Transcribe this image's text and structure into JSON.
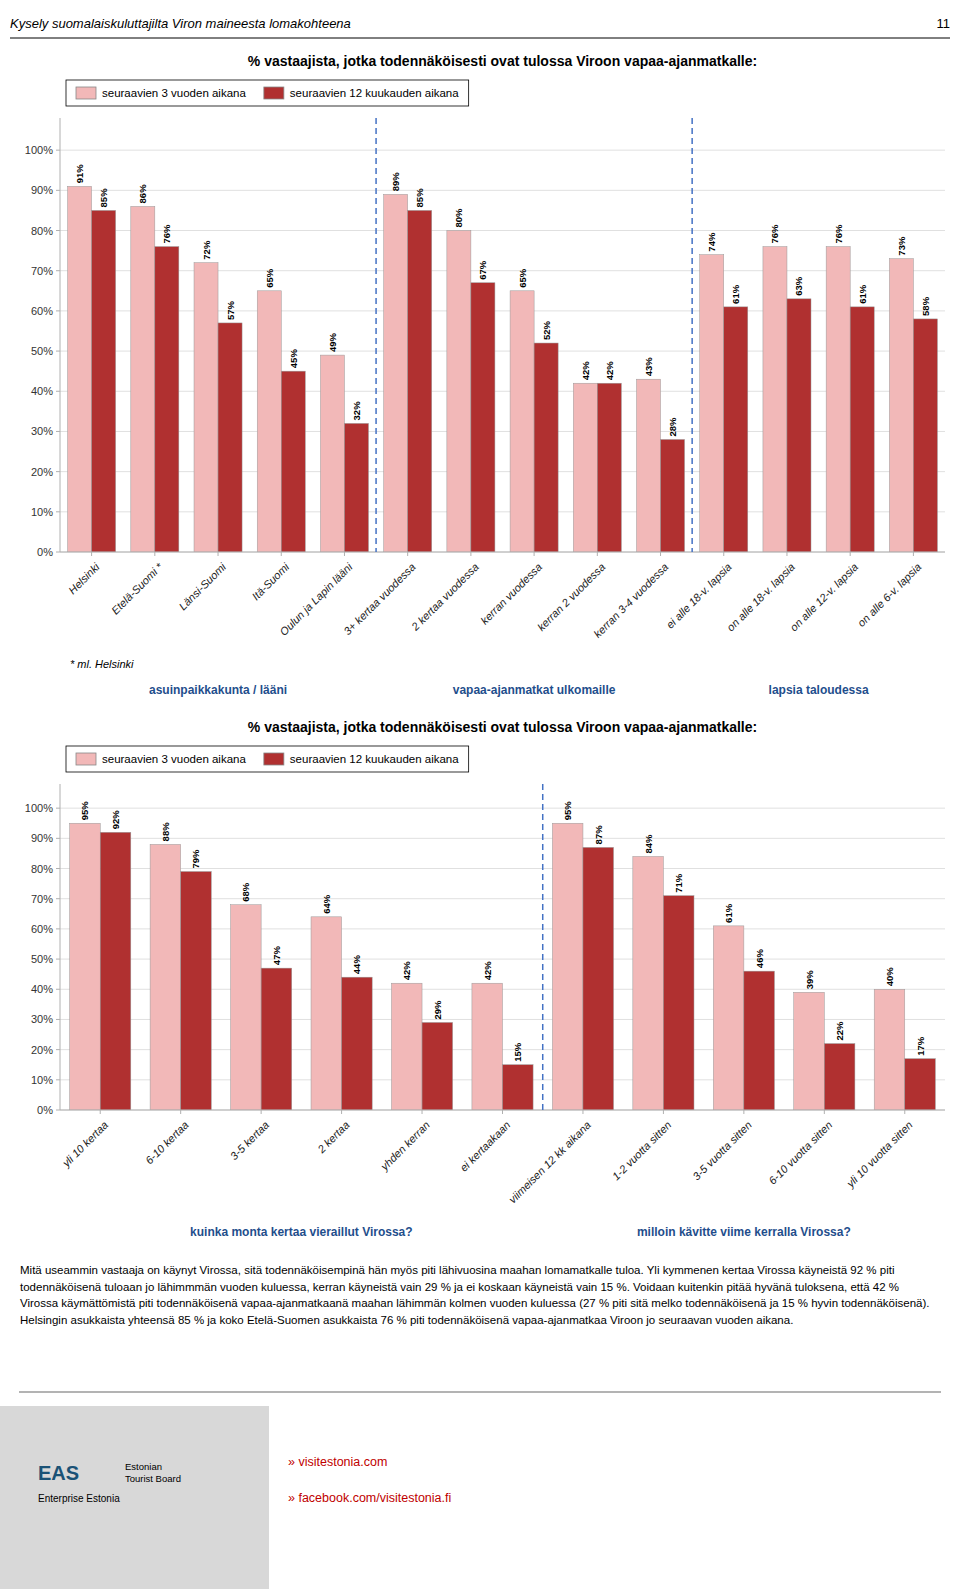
{
  "page": {
    "title": "Kysely suomalaiskuluttajilta Viron maineesta lomakohteena",
    "number": "11",
    "text": "Mitä useammin vastaaja on käynyt Virossa, sitä todennäköisempinä hän myös piti lähivuosina maahan lomamatkalle tuloa. Yli kymmenen kertaa Virossa käyneistä 92 % piti todennäköisenä tuloaan jo lähimmmän vuoden kuluessa, kerran käyneistä vain 29 % ja ei koskaan käyneistä vain 15 %. Voidaan kuitenkin pitää hyvänä tuloksena, että 42 % Virossa käymättömistä piti todennäköisenä vapaa-ajanmatkaanä maahan lähimmän kolmen vuoden kuluessa (27 % piti sitä melko todennäköisenä ja 15 % hyvin todennäköisenä). Helsingin asukkaista yhteensä 85 % ja koko Etelä-Suomen asukkaista 76 % piti todennäköisenä vapaa-ajanmatkaa Viroon jo seuraavan vuoden aikana.",
    "footer": {
      "logo": "EAS",
      "logo_caption": "Enterprise Estonia",
      "board": "Estonian\nTourist Board",
      "links": [
        "» visitestonia.com",
        "» facebook.com/visitestonia.fi"
      ]
    }
  },
  "chart_data": [
    {
      "type": "bar",
      "title": "% vastaajista, jotka todennäköisesti ovat tulossa Viroon vapaa-ajanmatkalle:",
      "categories": [
        "Helsinki",
        "Etelä-Suomi *",
        "Länsi-Suomi",
        "Itä-Suomi",
        "Oulun ja Lapin lääni",
        "3+ kertaa vuodessa",
        "2 kertaa vuodessa",
        "kerran vuodessa",
        "kerran 2 vuodessa",
        "kerran 3-4 vuodessa",
        "ei alle 18-v. lapsia",
        "on alle 18-v. lapsia",
        "on alle 12-v. lapsia",
        "on alle 6-v. lapsia"
      ],
      "series": [
        {
          "name": "seuraavien 3 vuoden aikana",
          "color": "#f2b8b8",
          "values": [
            91,
            86,
            72,
            65,
            49,
            89,
            80,
            65,
            42,
            43,
            74,
            76,
            76,
            73
          ],
          "value_labels": [
            "91%",
            "86%",
            "72%",
            "65%",
            "49%",
            "89%",
            "80%",
            "65%",
            "42%",
            "43%",
            "74%",
            "76%",
            "76%",
            "73%"
          ]
        },
        {
          "name": "seuraavien 12 kuukauden aikana",
          "color": "#b03030",
          "values": [
            85,
            76,
            57,
            45,
            32,
            85,
            67,
            52,
            42,
            28,
            61,
            63,
            61,
            58
          ],
          "value_labels": [
            "85%",
            "76%",
            "57%",
            "45%",
            "32%",
            "85%",
            "67%",
            "52%",
            "42%",
            "28%",
            "61%",
            "63%",
            "61%",
            "58%"
          ]
        }
      ],
      "ylim": [
        0,
        108
      ],
      "yticks": [
        {
          "value": 0,
          "label": "0%"
        },
        {
          "value": 10,
          "label": "10%"
        },
        {
          "value": 20,
          "label": "20%"
        },
        {
          "value": 30,
          "label": "30%"
        },
        {
          "value": 40,
          "label": "40%"
        },
        {
          "value": 50,
          "label": "50%"
        },
        {
          "value": 60,
          "label": "60%"
        },
        {
          "value": 70,
          "label": "70%"
        },
        {
          "value": 80,
          "label": "80%"
        },
        {
          "value": 90,
          "label": "90%"
        },
        {
          "value": 100,
          "label": "100%"
        }
      ],
      "grid": true,
      "legend": "top",
      "data_labels": true,
      "dividers": [
        5,
        10
      ],
      "group_labels": [
        "asuinpaikkakunta / lääni",
        "vapaa-ajanmatkat ulkomaille",
        "lapsia taloudessa"
      ],
      "footnote": "* ml. Helsinki"
    },
    {
      "type": "bar",
      "title": "% vastaajista, jotka todennäköisesti ovat tulossa Viroon vapaa-ajanmatkalle:",
      "categories": [
        "yli 10 kertaa",
        "6-10 kertaa",
        "3-5 kertaa",
        "2 kertaa",
        "yhden kerran",
        "ei kertaakaan",
        "viimeisen 12 kk aikana",
        "1-2 vuotta sitten",
        "3-5 vuotta sitten",
        "6-10 vuotta sitten",
        "yli 10 vuotta sitten"
      ],
      "series": [
        {
          "name": "seuraavien 3 vuoden aikana",
          "color": "#f2b8b8",
          "values": [
            95,
            88,
            68,
            64,
            42,
            42,
            95,
            84,
            61,
            39,
            40
          ],
          "value_labels": [
            "95%",
            "88%",
            "68%",
            "64%",
            "42%",
            "42%",
            "95%",
            "84%",
            "61%",
            "39%",
            "40%"
          ]
        },
        {
          "name": "seuraavien 12 kuukauden aikana",
          "color": "#b03030",
          "values": [
            92,
            79,
            47,
            44,
            29,
            15,
            87,
            71,
            46,
            22,
            17
          ],
          "value_labels": [
            "92%",
            "79%",
            "47%",
            "44%",
            "29%",
            "15%",
            "87%",
            "71%",
            "46%",
            "22%",
            "17%"
          ]
        }
      ],
      "ylim": [
        0,
        108
      ],
      "yticks": [
        {
          "value": 0,
          "label": "0%"
        },
        {
          "value": 10,
          "label": "10%"
        },
        {
          "value": 20,
          "label": "20%"
        },
        {
          "value": 30,
          "label": "30%"
        },
        {
          "value": 40,
          "label": "40%"
        },
        {
          "value": 50,
          "label": "50%"
        },
        {
          "value": 60,
          "label": "60%"
        },
        {
          "value": 70,
          "label": "70%"
        },
        {
          "value": 80,
          "label": "80%"
        },
        {
          "value": 90,
          "label": "90%"
        },
        {
          "value": 100,
          "label": "100%"
        }
      ],
      "grid": true,
      "legend": "top",
      "data_labels": true,
      "dividers": [
        6
      ],
      "group_labels": [
        "kuinka monta kertaa vieraillut Virossa?",
        "milloin kävitte viime kerralla Virossa?"
      ]
    }
  ]
}
